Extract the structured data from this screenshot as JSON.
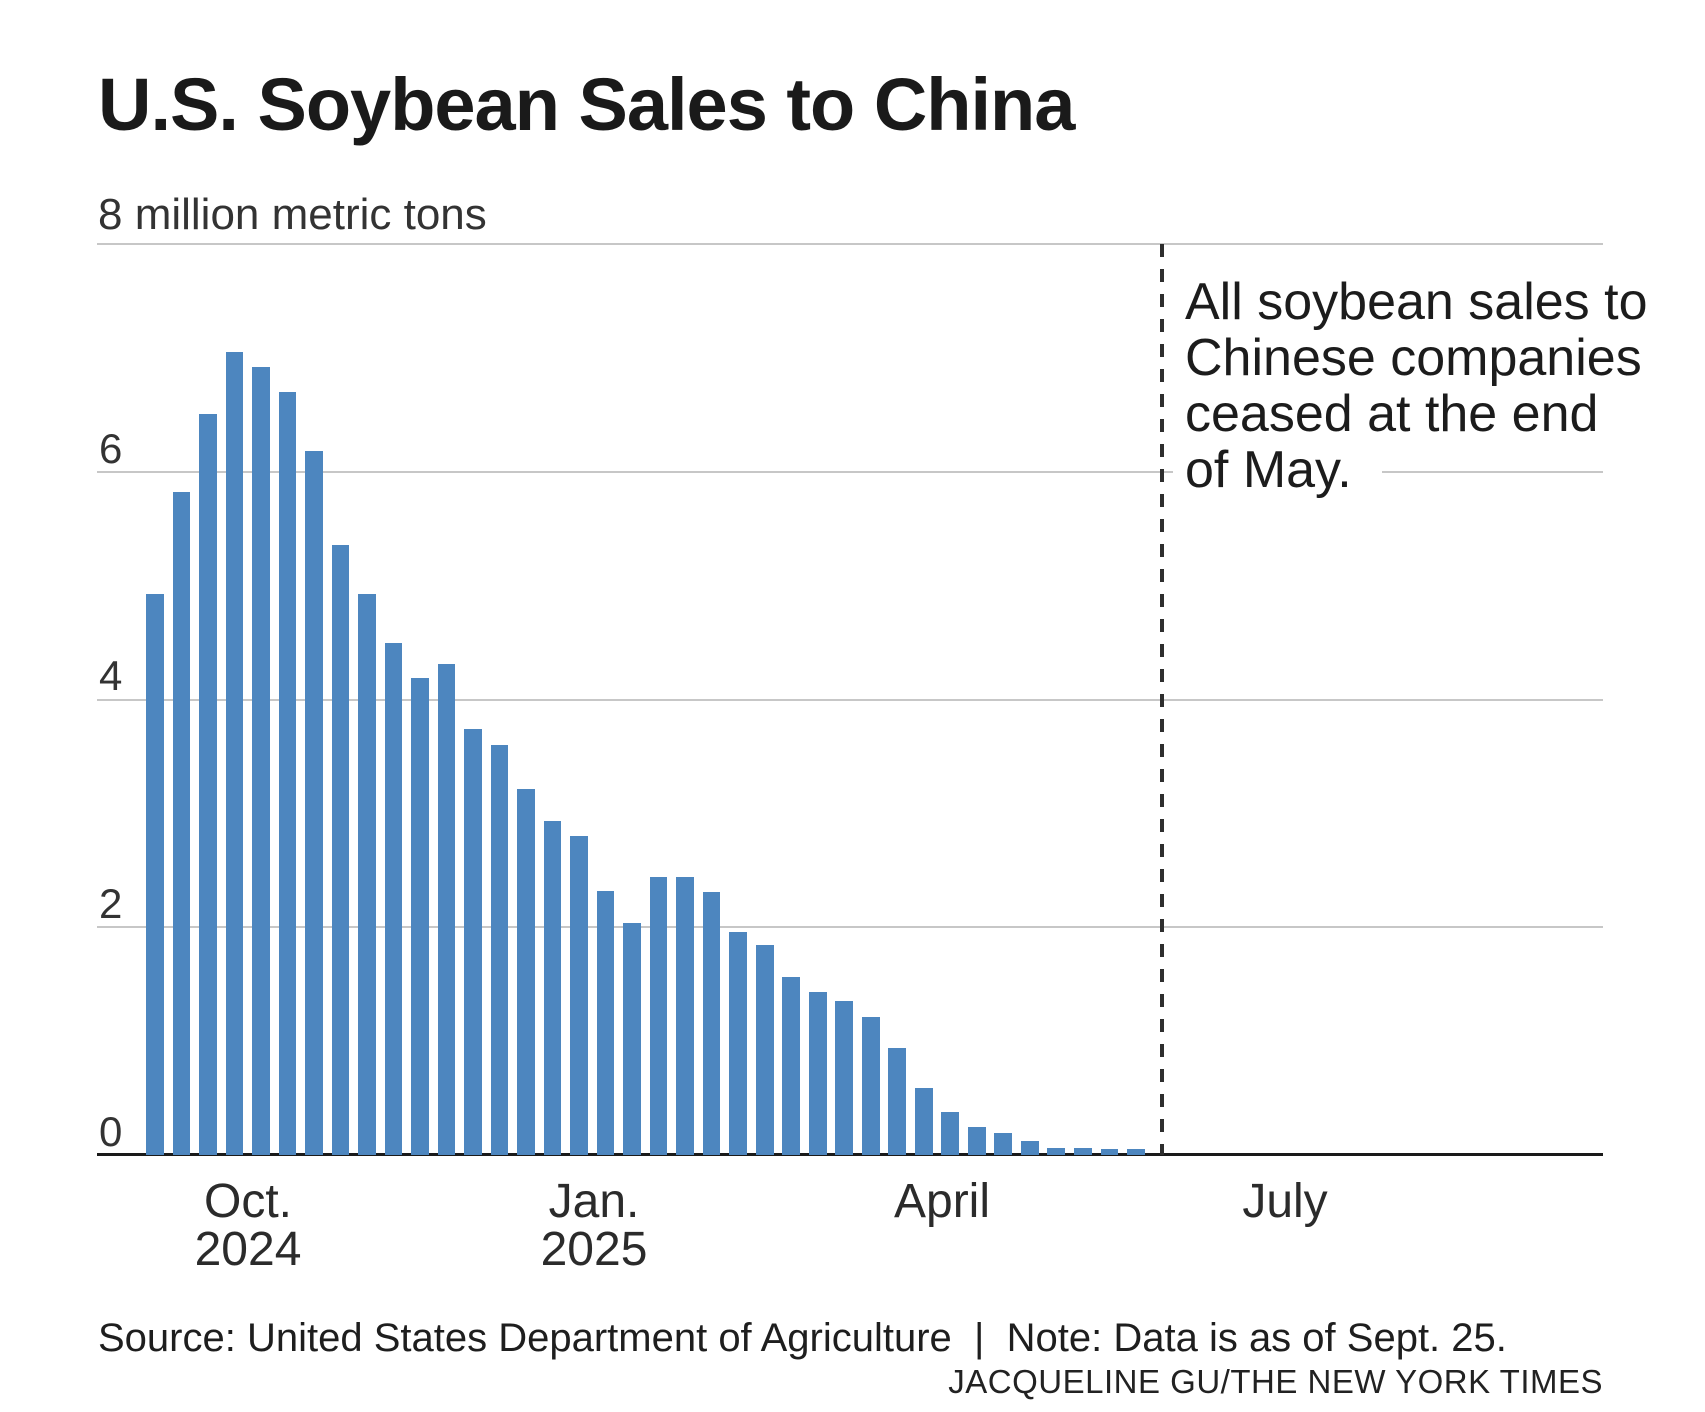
{
  "header": {
    "title": "U.S. Soybean Sales to China",
    "unit_label": "8 million metric tons"
  },
  "annotation": {
    "lines": [
      "All soybean sales to",
      "Chinese companies",
      "ceased at the end",
      "of May."
    ]
  },
  "footer": {
    "source_note": "Source: United States Department of Agriculture  |  Note: Data is as of Sept. 25.",
    "credit": "JACQUELINE GU/THE NEW YORK TIMES"
  },
  "chart_data": {
    "type": "bar",
    "title": "U.S. Soybean Sales to China",
    "ylabel": "million metric tons",
    "ylim": [
      0,
      8
    ],
    "yticks_gridlines": [
      8,
      6,
      4,
      2,
      0
    ],
    "ytick_labels_left": [
      "6",
      "4",
      "2",
      "0"
    ],
    "x_period": "weekly outstanding sales, Sept. 2024 through May 2025",
    "x_month_ticks": [
      {
        "line1": "Oct.",
        "line2": "2024"
      },
      {
        "line1": "Jan.",
        "line2": "2025"
      },
      {
        "line1": "April",
        "line2": ""
      },
      {
        "line1": "July",
        "line2": ""
      }
    ],
    "values": [
      4.93,
      5.82,
      6.51,
      7.05,
      6.92,
      6.7,
      6.18,
      5.36,
      4.93,
      4.5,
      4.19,
      4.31,
      3.74,
      3.6,
      3.21,
      2.93,
      2.8,
      2.32,
      2.04,
      2.44,
      2.44,
      2.31,
      1.96,
      1.84,
      1.56,
      1.43,
      1.35,
      1.21,
      0.94,
      0.59,
      0.38,
      0.25,
      0.19,
      0.12,
      0.06,
      0.06,
      0.05,
      0.05
    ],
    "event_line": "All soybean sales to Chinese companies ceased at the end of May.",
    "bar_color": "#4d86bf",
    "grid": true,
    "legend": "none"
  }
}
